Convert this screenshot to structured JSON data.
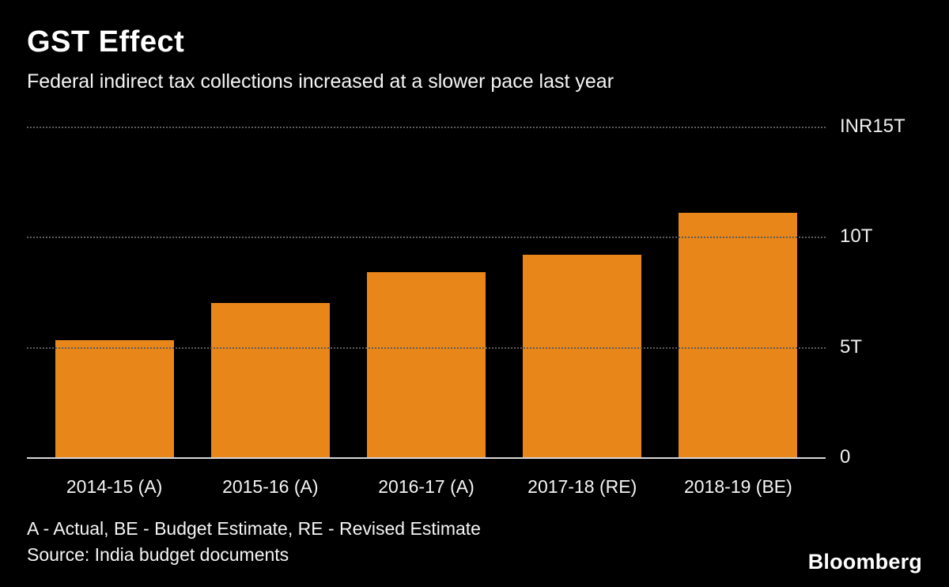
{
  "header": {
    "title": "GST Effect",
    "subtitle": "Federal indirect tax collections increased at a slower pace last year"
  },
  "chart_data": {
    "type": "bar",
    "title": "GST Effect",
    "subtitle": "Federal indirect tax collections increased at a slower pace last year",
    "categories": [
      "2014-15 (A)",
      "2015-16 (A)",
      "2016-17 (A)",
      "2017-18 (RE)",
      "2018-19 (BE)"
    ],
    "values": [
      5.3,
      7.0,
      8.4,
      9.2,
      11.1
    ],
    "unit": "INR trillion",
    "ylim": [
      0,
      15
    ],
    "yticks": [
      {
        "value": 15,
        "label": "INR15T"
      },
      {
        "value": 10,
        "label": "10T"
      },
      {
        "value": 5,
        "label": "5T"
      },
      {
        "value": 0,
        "label": "0"
      }
    ],
    "bar_color": "#E8861A",
    "grid": "dotted-horizontal",
    "legend": "none",
    "ytick_position": "right"
  },
  "footer": {
    "note": "A - Actual, BE - Budget Estimate, RE - Revised Estimate",
    "source": "Source: India budget documents",
    "logo": "Bloomberg"
  }
}
